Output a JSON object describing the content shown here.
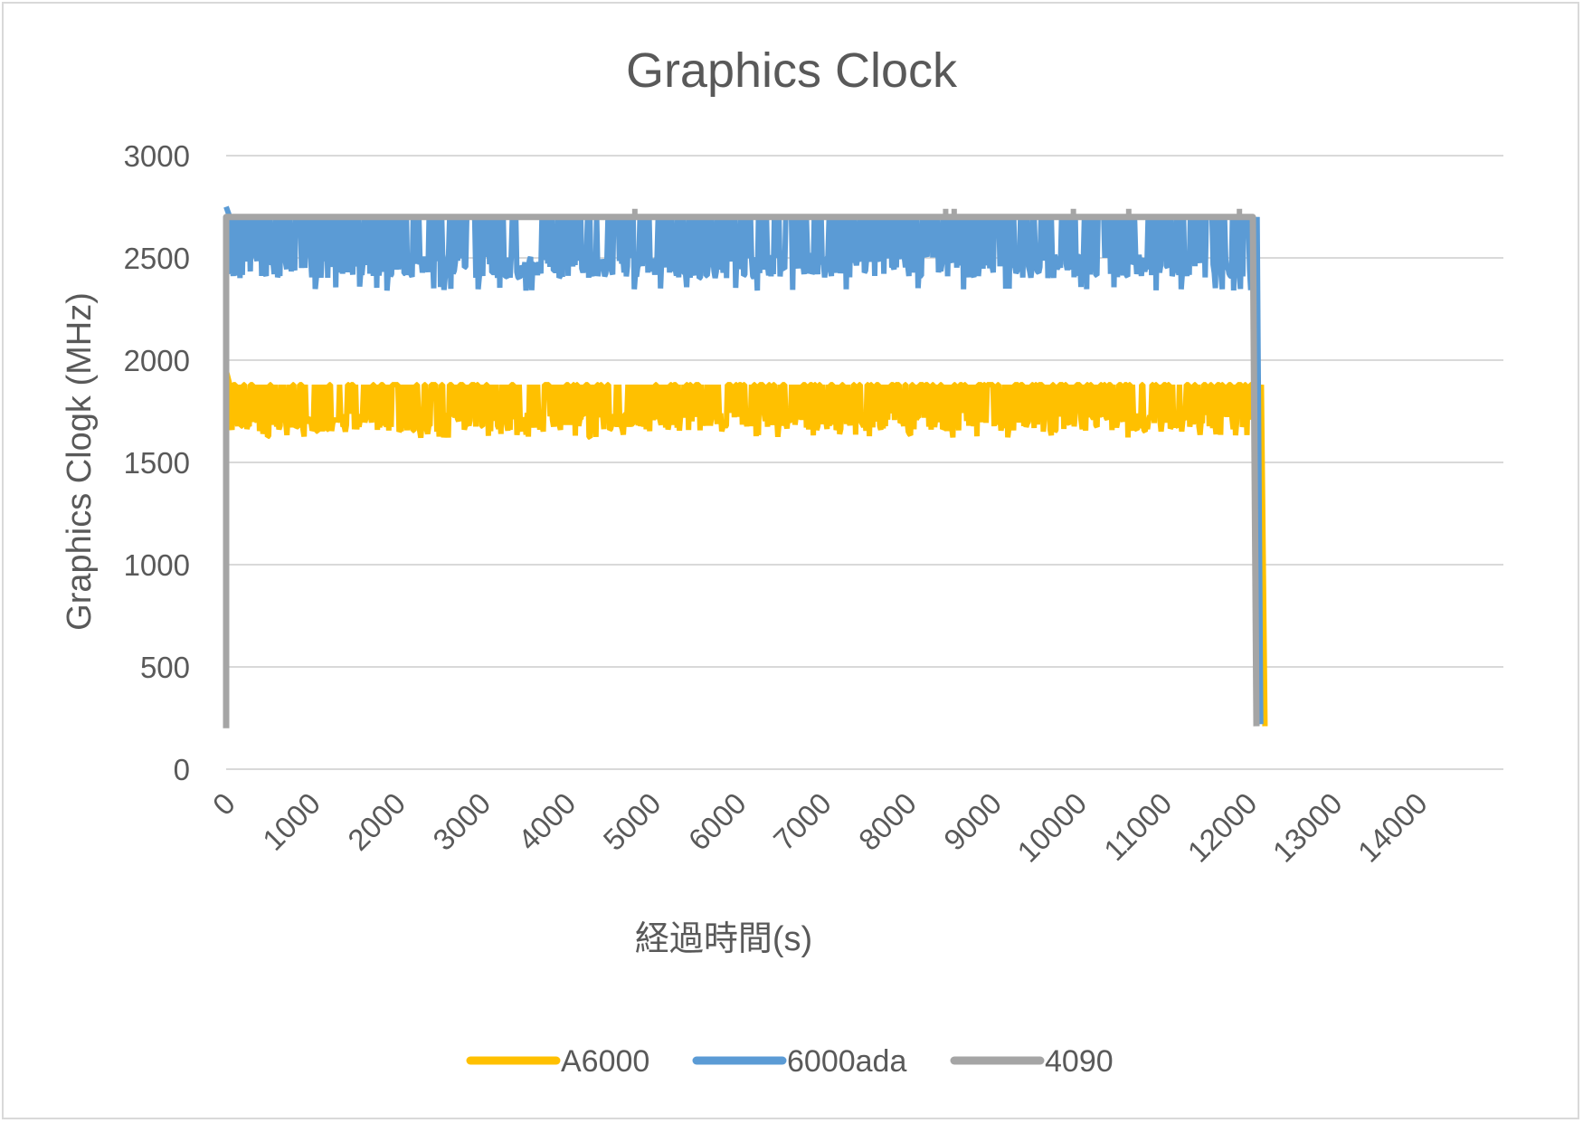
{
  "chart_data": {
    "type": "line",
    "title": "Graphics Clock",
    "xlabel": "経過時間(s)",
    "ylabel": "Graphics Clogk (MHz)",
    "xlim": [
      0,
      15000
    ],
    "ylim": [
      0,
      3000
    ],
    "x_ticks": [
      "0",
      "1000",
      "2000",
      "3000",
      "4000",
      "5000",
      "6000",
      "7000",
      "8000",
      "9000",
      "10000",
      "11000",
      "12000",
      "13000",
      "14000"
    ],
    "y_ticks": [
      "0",
      "500",
      "1000",
      "1500",
      "2000",
      "2500",
      "3000"
    ],
    "grid": true,
    "legend_position": "bottom",
    "series": [
      {
        "name": "A6000",
        "color": "#FFC000",
        "x_end": 12200,
        "start_value": 1950,
        "band_high": 1880,
        "band_low": 1650,
        "dip_min": 1620,
        "end_value": 210
      },
      {
        "name": "6000ada",
        "color": "#5B9BD5",
        "x_end": 12150,
        "start_value": 2750,
        "band_high": 2700,
        "band_low": 2400,
        "dip_min": 2340,
        "end_value": 220
      },
      {
        "name": "4090",
        "color": "#A5A5A5",
        "x_end": 12100,
        "start_value": 200,
        "band_high": 2700,
        "band_low": 2700,
        "dip_min": 2700,
        "end_value": 210
      }
    ]
  }
}
